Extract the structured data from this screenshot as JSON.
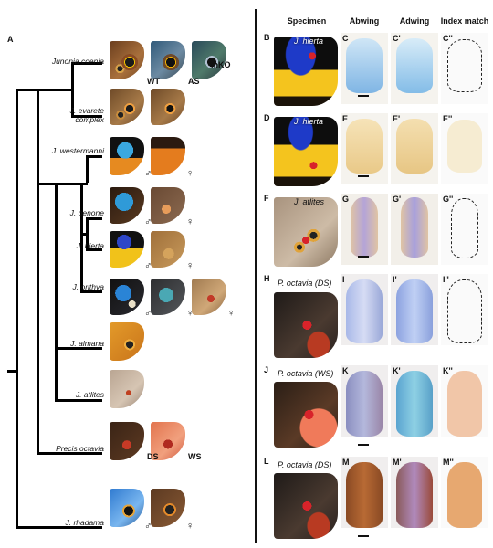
{
  "figure": {
    "panel_a_label": "A",
    "species": [
      {
        "name": "Junonia coenia",
        "codes": [
          "WT",
          "AS",
          "mKO"
        ]
      },
      {
        "name": "J. evarete complex",
        "codes": []
      },
      {
        "name": "J. westermanni",
        "codes": [
          "♂",
          "♀"
        ]
      },
      {
        "name": "J. oenone",
        "codes": [
          "♂",
          "♀"
        ]
      },
      {
        "name": "J. hierta",
        "codes": [
          "♂",
          "♀"
        ]
      },
      {
        "name": "J. orithya",
        "codes": [
          "♂",
          "♀",
          "♀"
        ]
      },
      {
        "name": "J. almana",
        "codes": []
      },
      {
        "name": "J. atlites",
        "codes": []
      },
      {
        "name": "Precis octavia",
        "codes": [
          "DS",
          "WS"
        ]
      },
      {
        "name": "J. rhadama",
        "codes": [
          "♂",
          "♀"
        ]
      }
    ],
    "column_headers": [
      "Specimen",
      "Abwing",
      "Adwing",
      "Index match"
    ],
    "rows": [
      {
        "left": "B",
        "specimen": "J. hierta",
        "l1": "C",
        "l2": "C'",
        "l3": "C''"
      },
      {
        "left": "D",
        "specimen": "J. hierta",
        "l1": "E",
        "l2": "E'",
        "l3": "E''"
      },
      {
        "left": "F",
        "specimen": "J. atlites",
        "l1": "G",
        "l2": "G'",
        "l3": "G''"
      },
      {
        "left": "H",
        "specimen": "P. octavia (DS)",
        "l1": "I",
        "l2": "I'",
        "l3": "I''"
      },
      {
        "left": "J",
        "specimen": "P. octavia (WS)",
        "l1": "K",
        "l2": "K'",
        "l3": "K''"
      },
      {
        "left": "L",
        "specimen": "P. octavia (DS)",
        "l1": "M",
        "l2": "M'",
        "l3": "M''"
      }
    ]
  }
}
